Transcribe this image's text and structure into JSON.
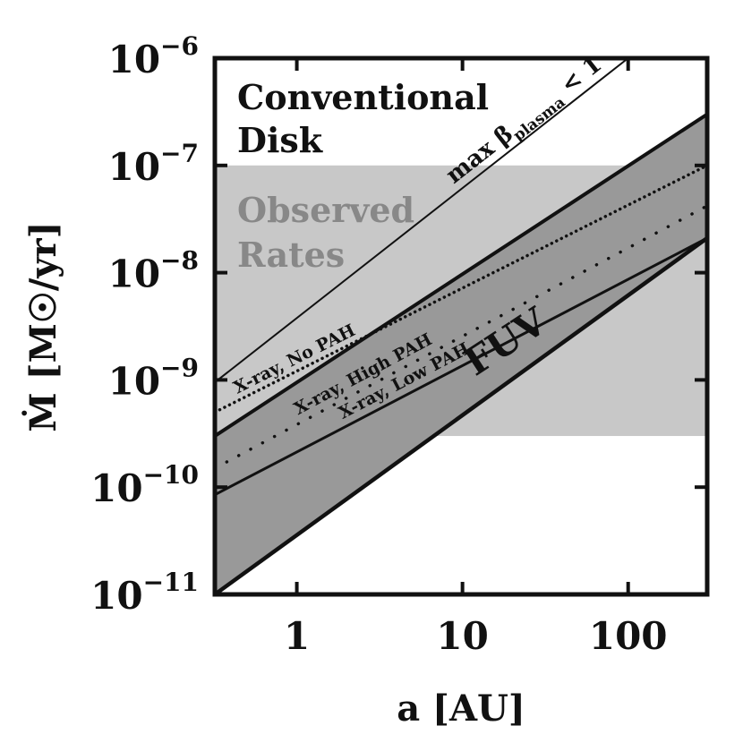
{
  "chart_data": {
    "type": "line",
    "x_scale": "log",
    "y_scale": "log",
    "xlim": [
      0.32,
      300
    ],
    "ylim": [
      1e-11,
      1e-06
    ],
    "xlabel": "a [AU]",
    "ylabel": "Ṁ [M☉/yr]",
    "x_ticks": [
      {
        "value": 1,
        "label": "1"
      },
      {
        "value": 10,
        "label": "10"
      },
      {
        "value": 100,
        "label": "100"
      }
    ],
    "y_ticks": [
      {
        "value": 1e-11,
        "base": "10",
        "exp": "−11"
      },
      {
        "value": 1e-10,
        "base": "10",
        "exp": "−10"
      },
      {
        "value": 1e-09,
        "base": "10",
        "exp": "−9"
      },
      {
        "value": 1e-08,
        "base": "10",
        "exp": "−8"
      },
      {
        "value": 1e-07,
        "base": "10",
        "exp": "−7"
      },
      {
        "value": 1e-06,
        "base": "10",
        "exp": "−6"
      }
    ],
    "observed_band": {
      "ymin": 3e-10,
      "ymax": 1e-07,
      "label_line1": "Observed",
      "label_line2": "Rates",
      "color": "#c8c8c8"
    },
    "fuv_region": {
      "label": "FUV",
      "color": "#999999",
      "upper": {
        "x": [
          0.32,
          300
        ],
        "y": [
          3e-10,
          3e-07
        ]
      },
      "lower": {
        "x": [
          0.32,
          300
        ],
        "y": [
          1e-11,
          2.1e-08
        ]
      }
    },
    "series": [
      {
        "name": "max β_plasma < 1",
        "style": "solid-thin",
        "x": [
          0.32,
          100
        ],
        "y": [
          9.5e-10,
          1e-06
        ]
      },
      {
        "name": "X-ray, No PAH",
        "style": "dotted",
        "x": [
          0.32,
          300
        ],
        "y": [
          5e-10,
          1e-07
        ]
      },
      {
        "name": "X-ray, High PAH",
        "style": "dotted-sparse",
        "x": [
          0.32,
          300
        ],
        "y": [
          1.5e-10,
          4.2e-08
        ]
      },
      {
        "name": "X-ray, Low PAH",
        "style": "solid",
        "x": [
          0.32,
          300
        ],
        "y": [
          8.5e-11,
          2.1e-08
        ]
      }
    ],
    "annotations": {
      "conventional_line1": "Conventional",
      "conventional_line2": "Disk",
      "beta_prefix": "max β",
      "beta_sub": "plasma",
      "beta_suffix": "< 1"
    },
    "grid": false
  }
}
